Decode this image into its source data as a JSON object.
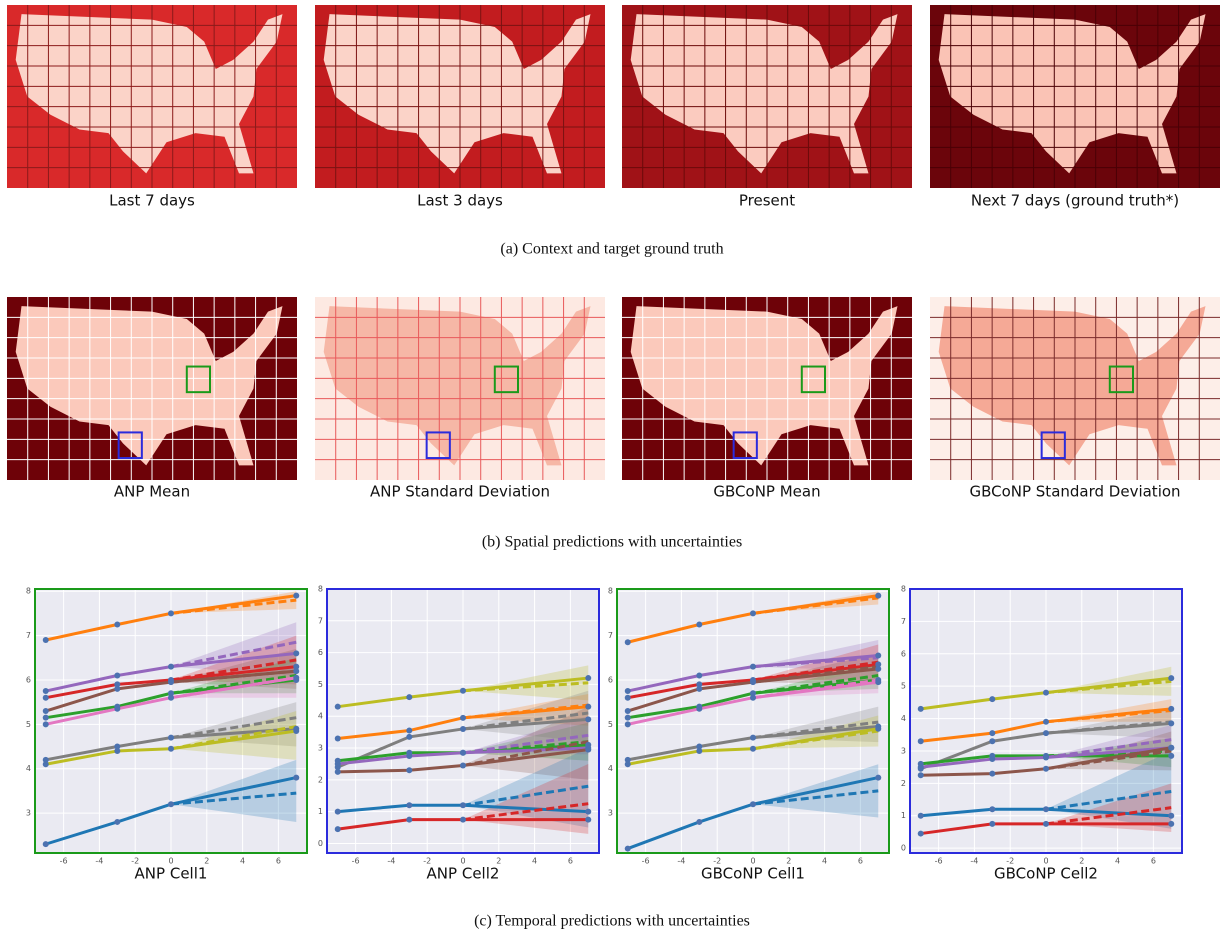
{
  "figure": {
    "row_a": {
      "labels": [
        "Last 7 days",
        "Last 3 days",
        "Present",
        "Next 7 days (ground truth*)"
      ],
      "caption": "(a) Context and target ground truth"
    },
    "row_b": {
      "labels": [
        "ANP Mean",
        "ANP Standard Deviation",
        "GBCoNP Mean",
        "GBCoNP Standard Deviation"
      ],
      "caption": "(b) Spatial predictions with uncertainties"
    },
    "row_c": {
      "caption": "(c) Temporal predictions with uncertainties"
    }
  },
  "chart_data": [
    {
      "type": "line",
      "label": "ANP Cell1",
      "frame_color": "#1a9a1a",
      "grid": true,
      "x": [
        -7,
        -3,
        0,
        7
      ],
      "xlim": [
        -7.6,
        7.6
      ],
      "xticks": [
        -6,
        -4,
        -2,
        0,
        2,
        4,
        6
      ],
      "ylim": [
        2.1,
        8.05
      ],
      "yticks": [
        3,
        4,
        5,
        6,
        7,
        8
      ],
      "series": [
        {
          "color": "#ff7f0e",
          "values": [
            6.9,
            7.25,
            7.5,
            7.9
          ],
          "forecast": 7.8,
          "forecast_band": [
            7.6,
            8.0
          ]
        },
        {
          "color": "#9467bd",
          "values": [
            5.75,
            6.1,
            6.3,
            6.6
          ],
          "forecast": 6.85,
          "forecast_band": [
            6.1,
            7.3
          ]
        },
        {
          "color": "#d62728",
          "values": [
            5.6,
            5.9,
            6.0,
            6.3
          ],
          "forecast": 6.45,
          "forecast_band": [
            5.9,
            7.0
          ]
        },
        {
          "color": "#8c564b",
          "values": [
            5.3,
            5.8,
            5.95,
            6.2
          ],
          "forecast": 6.2,
          "forecast_band": [
            5.8,
            6.7
          ]
        },
        {
          "color": "#2ca02c",
          "values": [
            5.15,
            5.4,
            5.7,
            6.0
          ],
          "forecast": 6.1,
          "forecast_band": [
            5.7,
            6.5
          ]
        },
        {
          "color": "#e377c2",
          "values": [
            5.0,
            5.35,
            5.6,
            6.05
          ],
          "forecast": 6.05,
          "forecast_band": [
            5.6,
            6.4
          ]
        },
        {
          "color": "#7f7f7f",
          "values": [
            4.2,
            4.5,
            4.7,
            4.9
          ],
          "forecast": 5.15,
          "forecast_band": [
            4.5,
            5.5
          ]
        },
        {
          "color": "#bcbd22",
          "values": [
            4.1,
            4.4,
            4.45,
            4.85
          ],
          "forecast": 4.95,
          "forecast_band": [
            4.2,
            5.3
          ]
        },
        {
          "color": "#1f77b4",
          "values": [
            2.3,
            2.8,
            3.2,
            3.8
          ],
          "forecast": 3.45,
          "forecast_band": [
            2.8,
            4.2
          ]
        }
      ]
    },
    {
      "type": "line",
      "label": "ANP Cell2",
      "frame_color": "#2b2bdc",
      "grid": true,
      "x": [
        -7,
        -3,
        0,
        7
      ],
      "xlim": [
        -7.6,
        7.6
      ],
      "xticks": [
        -6,
        -4,
        -2,
        0,
        2,
        4,
        6
      ],
      "ylim": [
        -0.3,
        8.0
      ],
      "yticks": [
        0,
        1,
        2,
        3,
        4,
        5,
        6,
        7,
        8
      ],
      "series": [
        {
          "color": "#bcbd22",
          "values": [
            4.3,
            4.6,
            4.8,
            5.2
          ],
          "forecast": 5.05,
          "forecast_band": [
            4.5,
            5.6
          ]
        },
        {
          "color": "#ff7f0e",
          "values": [
            3.3,
            3.55,
            3.95,
            4.3
          ],
          "forecast": 4.35,
          "forecast_band": [
            3.7,
            4.7
          ]
        },
        {
          "color": "#7f7f7f",
          "values": [
            2.4,
            3.35,
            3.6,
            3.9
          ],
          "forecast": 4.1,
          "forecast_band": [
            3.2,
            4.8
          ]
        },
        {
          "color": "#2ca02c",
          "values": [
            2.6,
            2.85,
            2.85,
            3.1
          ],
          "forecast": 3.2,
          "forecast_band": [
            2.6,
            3.8
          ]
        },
        {
          "color": "#9467bd",
          "values": [
            2.5,
            2.75,
            2.85,
            3.0
          ],
          "forecast": 3.4,
          "forecast_band": [
            2.8,
            4.0
          ]
        },
        {
          "color": "#8c564b",
          "values": [
            2.25,
            2.3,
            2.45,
            2.95
          ],
          "forecast": 3.2,
          "forecast_band": [
            2.0,
            4.3
          ]
        },
        {
          "color": "#1f77b4",
          "values": [
            1.0,
            1.2,
            1.2,
            1.0
          ],
          "forecast": 1.8,
          "forecast_band": [
            0.5,
            3.0
          ]
        },
        {
          "color": "#d62728",
          "values": [
            0.45,
            0.75,
            0.75,
            0.75
          ],
          "forecast": 1.25,
          "forecast_band": [
            0.3,
            2.5
          ]
        }
      ]
    },
    {
      "type": "line",
      "label": "GBCoNP Cell1",
      "frame_color": "#1a9a1a",
      "grid": true,
      "x": [
        -7,
        -3,
        0,
        7
      ],
      "xlim": [
        -7.6,
        7.6
      ],
      "xticks": [
        -6,
        -4,
        -2,
        0,
        2,
        4,
        6
      ],
      "ylim": [
        2.1,
        8.05
      ],
      "yticks": [
        3,
        4,
        5,
        6,
        7,
        8
      ],
      "series": [
        {
          "color": "#ff7f0e",
          "values": [
            6.85,
            7.25,
            7.5,
            7.9
          ],
          "forecast": 7.85,
          "forecast_band": [
            7.7,
            8.0
          ]
        },
        {
          "color": "#9467bd",
          "values": [
            5.75,
            6.1,
            6.3,
            6.55
          ],
          "forecast": 6.5,
          "forecast_band": [
            6.2,
            6.9
          ]
        },
        {
          "color": "#d62728",
          "values": [
            5.6,
            5.9,
            6.0,
            6.35
          ],
          "forecast": 6.4,
          "forecast_band": [
            6.0,
            6.8
          ]
        },
        {
          "color": "#8c564b",
          "values": [
            5.3,
            5.8,
            5.95,
            6.25
          ],
          "forecast": 6.3,
          "forecast_band": [
            5.9,
            6.6
          ]
        },
        {
          "color": "#2ca02c",
          "values": [
            5.15,
            5.4,
            5.7,
            6.0
          ],
          "forecast": 6.1,
          "forecast_band": [
            5.8,
            6.4
          ]
        },
        {
          "color": "#e377c2",
          "values": [
            5.0,
            5.35,
            5.6,
            5.95
          ],
          "forecast": 6.0,
          "forecast_band": [
            5.7,
            6.3
          ]
        },
        {
          "color": "#7f7f7f",
          "values": [
            4.2,
            4.5,
            4.7,
            4.95
          ],
          "forecast": 5.05,
          "forecast_band": [
            4.6,
            5.4
          ]
        },
        {
          "color": "#bcbd22",
          "values": [
            4.1,
            4.4,
            4.45,
            4.9
          ],
          "forecast": 4.85,
          "forecast_band": [
            4.5,
            5.2
          ]
        },
        {
          "color": "#1f77b4",
          "values": [
            2.2,
            2.8,
            3.2,
            3.8
          ],
          "forecast": 3.5,
          "forecast_band": [
            2.9,
            4.1
          ]
        }
      ]
    },
    {
      "type": "line",
      "label": "GBCoNP Cell2",
      "frame_color": "#2b2bdc",
      "grid": true,
      "x": [
        -7,
        -3,
        0,
        7
      ],
      "xlim": [
        -7.6,
        7.6
      ],
      "xticks": [
        -6,
        -4,
        -2,
        0,
        2,
        4,
        6
      ],
      "ylim": [
        -0.15,
        8.0
      ],
      "yticks": [
        0,
        1,
        2,
        3,
        4,
        5,
        6,
        7,
        8
      ],
      "series": [
        {
          "color": "#bcbd22",
          "values": [
            4.3,
            4.6,
            4.8,
            5.25
          ],
          "forecast": 5.15,
          "forecast_band": [
            4.7,
            5.6
          ]
        },
        {
          "color": "#ff7f0e",
          "values": [
            3.3,
            3.55,
            3.9,
            4.3
          ],
          "forecast": 4.25,
          "forecast_band": [
            3.9,
            4.6
          ]
        },
        {
          "color": "#7f7f7f",
          "values": [
            2.45,
            3.3,
            3.55,
            3.85
          ],
          "forecast": 3.9,
          "forecast_band": [
            3.4,
            4.3
          ]
        },
        {
          "color": "#2ca02c",
          "values": [
            2.6,
            2.85,
            2.85,
            2.85
          ],
          "forecast": 3.0,
          "forecast_band": [
            2.5,
            3.4
          ]
        },
        {
          "color": "#9467bd",
          "values": [
            2.5,
            2.75,
            2.8,
            3.1
          ],
          "forecast": 3.35,
          "forecast_band": [
            2.9,
            3.8
          ]
        },
        {
          "color": "#8c564b",
          "values": [
            2.25,
            2.3,
            2.45,
            3.1
          ],
          "forecast": 3.0,
          "forecast_band": [
            2.4,
            3.6
          ]
        },
        {
          "color": "#1f77b4",
          "values": [
            1.0,
            1.2,
            1.2,
            1.0
          ],
          "forecast": 1.75,
          "forecast_band": [
            0.6,
            3.0
          ]
        },
        {
          "color": "#d62728",
          "values": [
            0.45,
            0.75,
            0.75,
            0.75
          ],
          "forecast": 1.25,
          "forecast_band": [
            0.5,
            2.0
          ]
        }
      ]
    }
  ]
}
